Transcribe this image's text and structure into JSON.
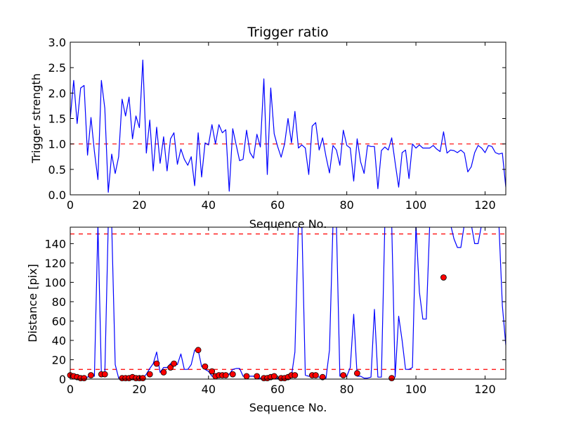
{
  "chart_data": [
    {
      "type": "line",
      "title": "Trigger ratio",
      "xlabel": "Sequence No.",
      "ylabel": "Trigger strength",
      "xlim": [
        0,
        126
      ],
      "ylim": [
        0,
        3.0
      ],
      "xticks": [
        0,
        20,
        40,
        60,
        80,
        100,
        120
      ],
      "yticks": [
        0.0,
        0.5,
        1.0,
        1.5,
        2.0,
        2.5,
        3.0
      ],
      "xtick_labels": [
        "0",
        "20",
        "40",
        "60",
        "80",
        "100",
        "120"
      ],
      "ytick_labels": [
        "0.0",
        "0.5",
        "1.0",
        "1.5",
        "2.0",
        "2.5",
        "3.0"
      ],
      "grid": false,
      "series": [
        {
          "color": "#0000ff",
          "style": "solid",
          "x": [
            0,
            1,
            2,
            3,
            4,
            5,
            6,
            7,
            8,
            9,
            10,
            11,
            12,
            13,
            14,
            15,
            16,
            17,
            18,
            19,
            20,
            21,
            22,
            23,
            24,
            25,
            26,
            27,
            28,
            29,
            30,
            31,
            32,
            33,
            34,
            35,
            36,
            37,
            38,
            39,
            40,
            41,
            42,
            43,
            44,
            45,
            46,
            47,
            48,
            49,
            50,
            51,
            52,
            53,
            54,
            55,
            56,
            57,
            58,
            59,
            60,
            61,
            62,
            63,
            64,
            65,
            66,
            67,
            68,
            69,
            70,
            71,
            72,
            73,
            74,
            75,
            76,
            77,
            78,
            79,
            80,
            81,
            82,
            83,
            84,
            85,
            86,
            87,
            88,
            89,
            90,
            91,
            92,
            93,
            94,
            95,
            96,
            97,
            98,
            99,
            100,
            101,
            102,
            103,
            104,
            105,
            106,
            107,
            108,
            109,
            110,
            111,
            112,
            113,
            114,
            115,
            116,
            117,
            118,
            119,
            120,
            121,
            122,
            123,
            124,
            125,
            126
          ],
          "values": [
            1.5,
            2.25,
            1.4,
            2.1,
            2.15,
            0.78,
            1.52,
            0.85,
            0.3,
            2.25,
            1.7,
            0.05,
            0.8,
            0.42,
            0.75,
            1.88,
            1.55,
            1.92,
            1.1,
            1.55,
            1.32,
            2.65,
            0.82,
            1.47,
            0.47,
            1.33,
            0.62,
            1.14,
            0.47,
            1.1,
            1.22,
            0.6,
            0.9,
            0.7,
            0.58,
            0.75,
            0.18,
            1.22,
            0.35,
            1.02,
            0.98,
            1.38,
            1.0,
            1.38,
            1.22,
            1.28,
            0.07,
            1.3,
            0.98,
            0.67,
            0.7,
            1.27,
            0.83,
            0.72,
            1.19,
            0.94,
            2.28,
            0.4,
            2.1,
            1.2,
            0.95,
            0.74,
            1.0,
            1.5,
            1.02,
            1.64,
            0.92,
            0.98,
            0.92,
            0.4,
            1.35,
            1.42,
            0.88,
            1.12,
            0.75,
            0.43,
            0.97,
            0.88,
            0.58,
            1.27,
            0.97,
            0.92,
            0.27,
            1.1,
            0.65,
            0.42,
            0.97,
            0.95,
            0.95,
            0.12,
            0.87,
            0.94,
            0.88,
            1.12,
            0.63,
            0.15,
            0.83,
            0.88,
            0.32,
            1.0,
            0.92,
            0.98,
            0.92,
            0.92,
            0.92,
            0.97,
            0.9,
            0.85,
            1.24,
            0.82,
            0.88,
            0.87,
            0.83,
            0.88,
            0.82,
            0.45,
            0.55,
            0.83,
            0.97,
            0.92,
            0.83,
            0.97,
            0.95,
            0.83,
            0.8,
            0.82,
            0.15
          ]
        }
      ],
      "hlines": [
        {
          "y": 1.0,
          "color": "#ff0000",
          "style": "dashed"
        }
      ]
    },
    {
      "type": "line",
      "title": "",
      "xlabel": "Sequence No.",
      "ylabel": "Distance [pix]",
      "xlim": [
        0,
        126
      ],
      "ylim": [
        0,
        157
      ],
      "xticks": [
        0,
        20,
        40,
        60,
        80,
        100,
        120
      ],
      "yticks": [
        0,
        20,
        40,
        60,
        80,
        100,
        120,
        140
      ],
      "xtick_labels": [
        "0",
        "20",
        "40",
        "60",
        "80",
        "100",
        "120"
      ],
      "ytick_labels": [
        "0",
        "20",
        "40",
        "60",
        "80",
        "100",
        "120",
        "140"
      ],
      "grid": false,
      "series": [
        {
          "color": "#0000ff",
          "style": "solid",
          "x": [
            0,
            1,
            2,
            3,
            4,
            5,
            6,
            7,
            8,
            9,
            10,
            11,
            12,
            13,
            14,
            15,
            16,
            17,
            18,
            19,
            20,
            21,
            22,
            23,
            24,
            25,
            26,
            27,
            28,
            29,
            30,
            31,
            32,
            33,
            34,
            35,
            36,
            37,
            38,
            39,
            40,
            41,
            42,
            43,
            44,
            45,
            46,
            47,
            48,
            49,
            50,
            51,
            52,
            53,
            54,
            55,
            56,
            57,
            58,
            59,
            60,
            61,
            62,
            63,
            64,
            65,
            66,
            67,
            68,
            69,
            70,
            71,
            72,
            73,
            74,
            75,
            76,
            77,
            78,
            79,
            80,
            81,
            82,
            83,
            84,
            85,
            86,
            87,
            88,
            89,
            90,
            91,
            92,
            93,
            94,
            95,
            96,
            97,
            98,
            99,
            100,
            101,
            102,
            103,
            104,
            105,
            106,
            107,
            108,
            109,
            110,
            111,
            112,
            113,
            114,
            115,
            116,
            117,
            118,
            119,
            120,
            121,
            122,
            123,
            124,
            125,
            126
          ],
          "values": [
            4,
            3,
            2,
            1,
            1,
            2,
            4,
            3,
            160,
            5,
            5,
            160,
            160,
            15,
            1,
            1,
            1,
            2,
            1,
            1,
            1,
            1,
            5,
            11,
            16,
            28,
            7,
            12,
            12,
            16,
            15,
            15,
            26,
            10,
            10,
            15,
            30,
            30,
            13,
            10,
            8,
            3,
            4,
            4,
            4,
            5,
            5,
            10,
            11,
            11,
            3,
            3,
            3,
            3,
            1,
            1,
            1,
            3,
            3,
            1,
            1,
            1,
            1,
            3,
            3,
            28,
            160,
            160,
            4,
            3,
            3,
            3,
            2,
            1,
            1,
            30,
            160,
            160,
            3,
            3,
            3,
            12,
            67,
            3,
            3,
            1,
            1,
            2,
            72,
            2,
            2,
            160,
            160,
            160,
            2,
            65,
            40,
            10,
            10,
            12,
            160,
            90,
            62,
            62,
            160,
            160,
            160,
            160,
            160,
            160,
            160,
            145,
            136,
            136,
            160,
            160,
            160,
            140,
            140,
            160,
            160,
            160,
            160,
            160,
            160,
            76,
            35
          ]
        }
      ],
      "markers": {
        "color": "#ff0000",
        "edge": "#000000",
        "x": [
          0,
          1,
          2,
          3,
          4,
          6,
          9,
          10,
          15,
          16,
          17,
          18,
          19,
          20,
          21,
          23,
          25,
          27,
          29,
          30,
          37,
          39,
          41,
          42,
          43,
          44,
          45,
          47,
          51,
          54,
          56,
          57,
          58,
          59,
          61,
          62,
          63,
          64,
          65,
          70,
          71,
          73,
          79,
          83,
          93,
          108
        ],
        "values": [
          4,
          3,
          2,
          1,
          1,
          4,
          5,
          5,
          1,
          1,
          1,
          2,
          1,
          1,
          1,
          5,
          16,
          7,
          12,
          16,
          30,
          13,
          8,
          3,
          4,
          4,
          4,
          5,
          3,
          3,
          1,
          1,
          2,
          3,
          1,
          1,
          2,
          4,
          4,
          4,
          4,
          2,
          4,
          6,
          1,
          105
        ]
      },
      "hlines": [
        {
          "y": 150,
          "color": "#ff0000",
          "style": "dashed"
        },
        {
          "y": 10,
          "color": "#ff0000",
          "style": "dashed"
        }
      ]
    }
  ]
}
